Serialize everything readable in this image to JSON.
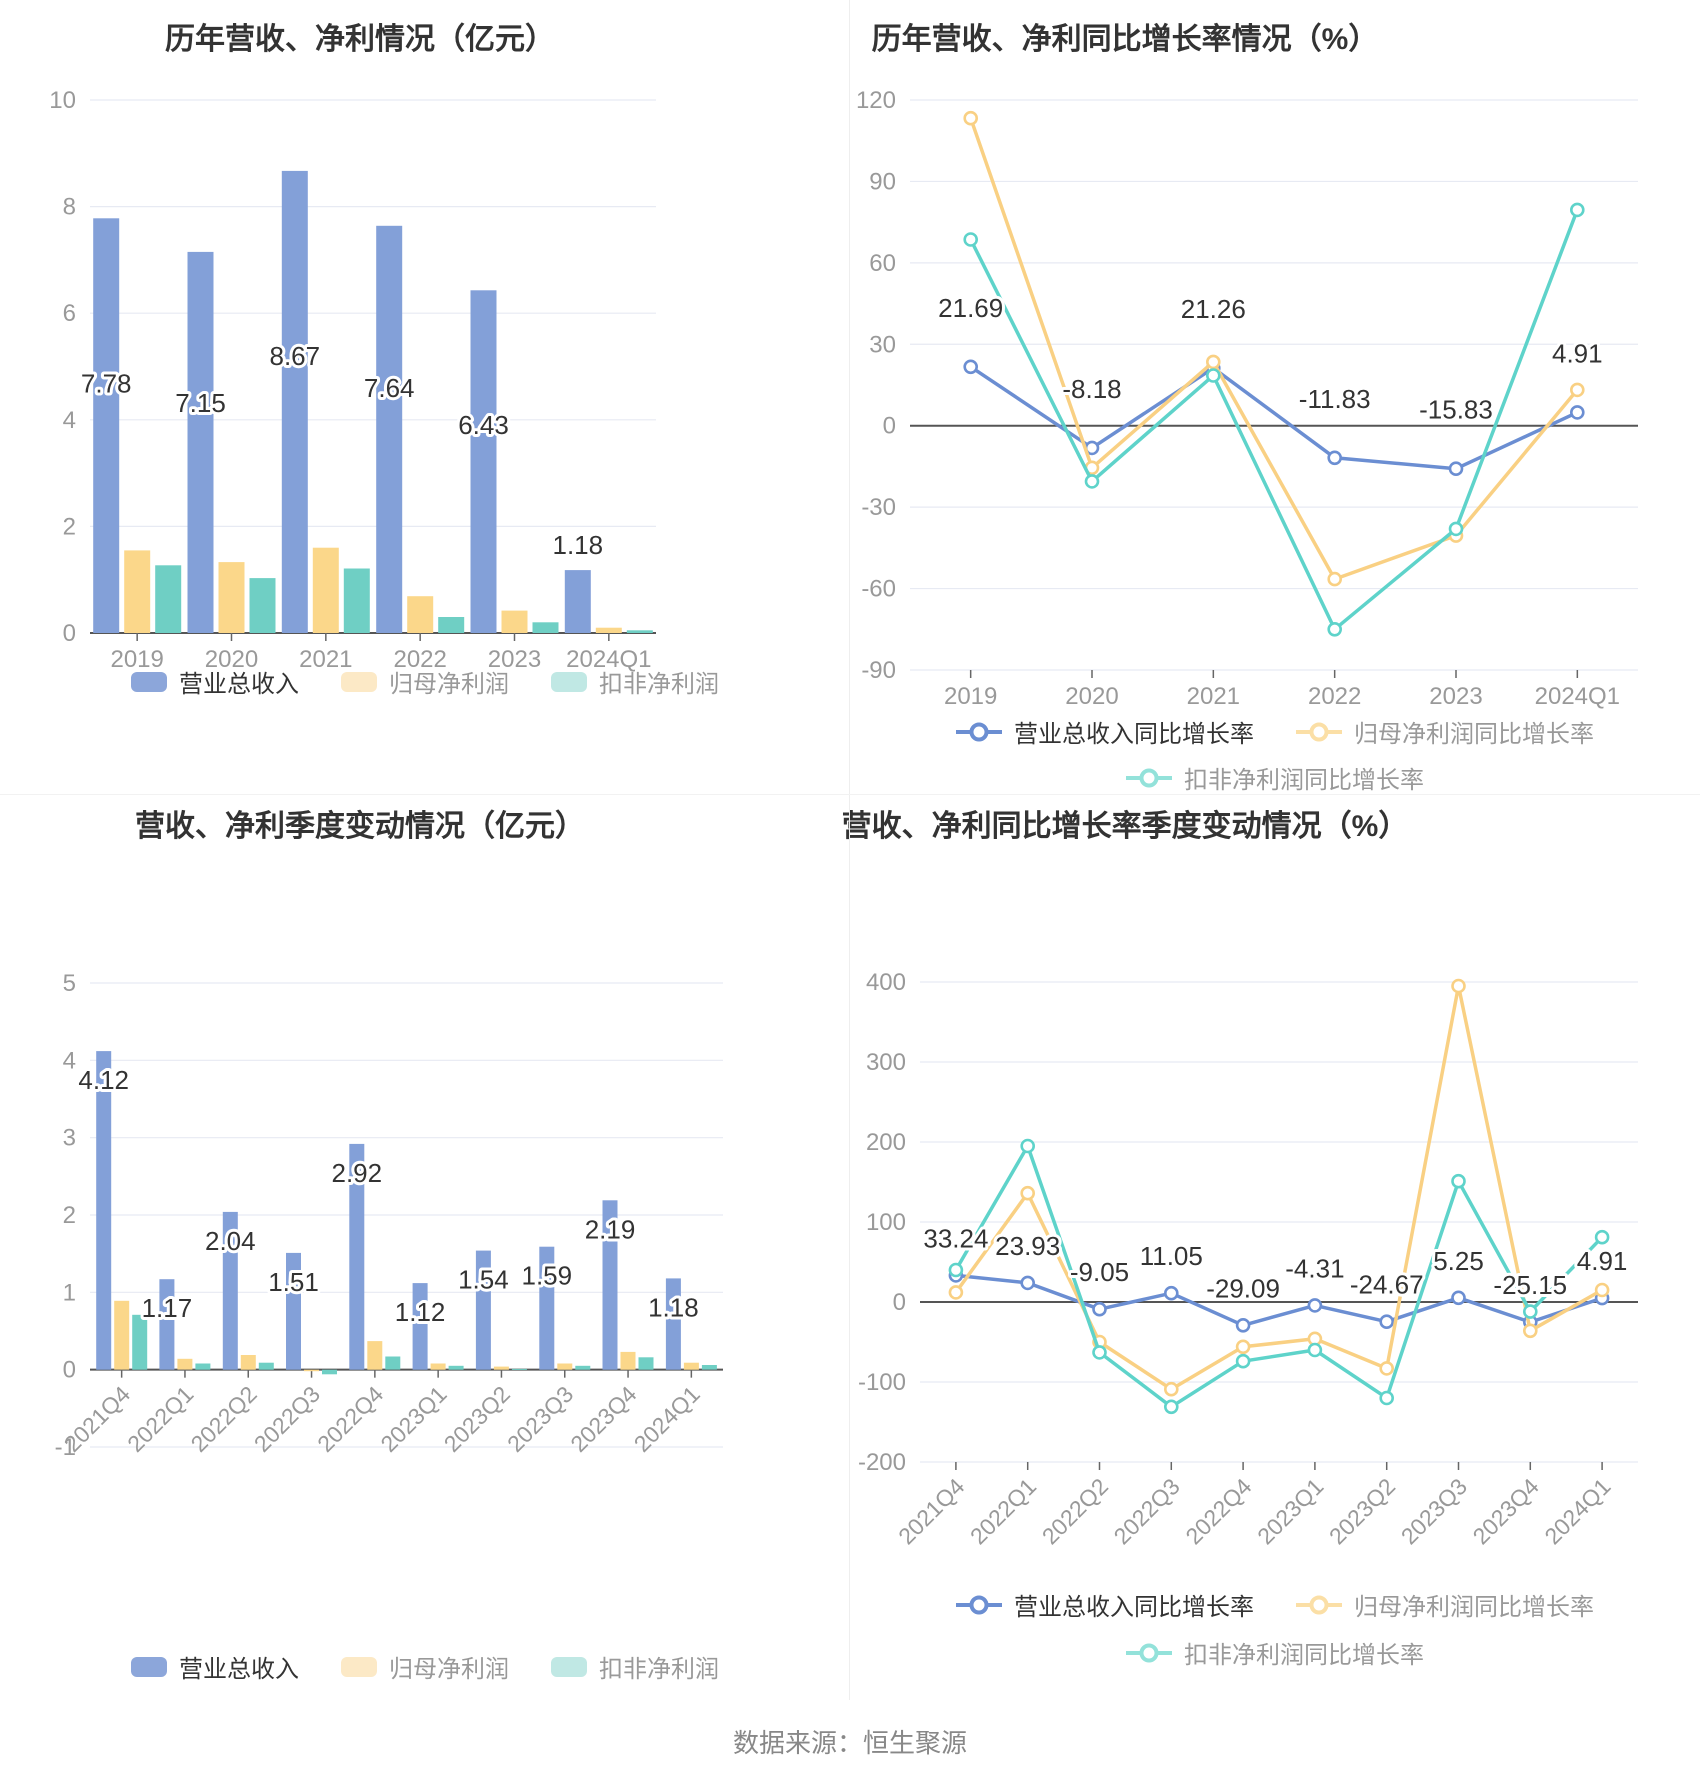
{
  "footer": {
    "source_text": "数据来源：恒生聚源"
  },
  "theme": {
    "background": "#ffffff",
    "title_color": "#333333",
    "axis_label_color": "#999999",
    "data_label_color": "#333333",
    "grid_line_color": "#e7eaf3",
    "zero_line_color": "#555555",
    "tick_color": "#666666",
    "divider_color": "#eeeeee",
    "footer_color": "#888888",
    "blue": "#83a0d8",
    "yellow": "#fbd78a",
    "teal": "#6fcfc4",
    "blue_line": "#6b8ed2",
    "yellow_line": "#f9d083",
    "teal_line": "#5ed3ca"
  },
  "chart_data": [
    {
      "type": "bar",
      "title": "历年营收、净利情况（亿元）",
      "categories": [
        "2019",
        "2020",
        "2021",
        "2022",
        "2023",
        "2024Q1"
      ],
      "y_axis": {
        "range": [
          0,
          10
        ],
        "ticks": [
          0,
          2,
          4,
          6,
          8,
          10
        ]
      },
      "grid": true,
      "legend_position": "bottom",
      "series": [
        {
          "name": "营业总收入",
          "color": "#83a0d8",
          "legend_color": "#8ca6da",
          "values": [
            7.78,
            7.15,
            8.67,
            7.64,
            6.43,
            1.18
          ],
          "labeled": true
        },
        {
          "name": "归母净利润",
          "color": "#fbd78a",
          "legend_color": "#fce9c6",
          "values": [
            1.55,
            1.33,
            1.6,
            0.69,
            0.42,
            0.1
          ],
          "labeled": false
        },
        {
          "name": "扣非净利润",
          "color": "#6fcfc4",
          "legend_color": "#c0e8e4",
          "values": [
            1.27,
            1.03,
            1.21,
            0.3,
            0.2,
            0.05
          ],
          "labeled": false
        }
      ]
    },
    {
      "type": "line",
      "title": "历年营收、净利同比增长率情况（%）",
      "categories": [
        "2019",
        "2020",
        "2021",
        "2022",
        "2023",
        "2024Q1"
      ],
      "y_axis": {
        "range": [
          -90,
          120
        ],
        "ticks": [
          -90,
          -60,
          -30,
          0,
          30,
          60,
          90,
          120
        ]
      },
      "grid": true,
      "legend_position": "bottom",
      "series": [
        {
          "name": "营业总收入同比增长率",
          "color": "#6b8ed2",
          "legend_color": "#6b8ed2",
          "values": [
            21.69,
            -8.18,
            21.26,
            -11.83,
            -15.83,
            4.91
          ],
          "labeled": true
        },
        {
          "name": "归母净利润同比增长率",
          "color": "#f9d083",
          "legend_color": "#fbdfa6",
          "values": [
            113.3,
            -15.5,
            23.5,
            -56.5,
            -40.5,
            13.2
          ],
          "labeled": false
        },
        {
          "name": "扣非净利润同比增长率",
          "color": "#5ed3ca",
          "legend_color": "#93e2da",
          "values": [
            68.6,
            -20.5,
            18.5,
            -75.0,
            -38.0,
            79.5
          ],
          "labeled": false
        }
      ]
    },
    {
      "type": "bar",
      "title": "营收、净利季度变动情况（亿元）",
      "categories": [
        "2021Q4",
        "2022Q1",
        "2022Q2",
        "2022Q3",
        "2022Q4",
        "2023Q1",
        "2023Q2",
        "2023Q3",
        "2023Q4",
        "2024Q1"
      ],
      "y_axis": {
        "range": [
          -1,
          5
        ],
        "ticks": [
          -1,
          0,
          1,
          2,
          3,
          4,
          5
        ]
      },
      "grid": true,
      "legend_position": "bottom",
      "series": [
        {
          "name": "营业总收入",
          "color": "#83a0d8",
          "legend_color": "#8ca6da",
          "values": [
            4.12,
            1.17,
            2.04,
            1.51,
            2.92,
            1.12,
            1.54,
            1.59,
            2.19,
            1.18
          ],
          "labeled": true
        },
        {
          "name": "归母净利润",
          "color": "#fbd78a",
          "legend_color": "#fce9c6",
          "values": [
            0.89,
            0.14,
            0.19,
            -0.02,
            0.37,
            0.08,
            0.04,
            0.08,
            0.23,
            0.09
          ],
          "labeled": false
        },
        {
          "name": "扣非净利润",
          "color": "#6fcfc4",
          "legend_color": "#c0e8e4",
          "values": [
            0.71,
            0.08,
            0.09,
            -0.06,
            0.17,
            0.05,
            0.01,
            0.05,
            0.16,
            0.06
          ],
          "labeled": false
        }
      ]
    },
    {
      "type": "line",
      "title": "营收、净利同比增长率季度变动情况（%）",
      "categories": [
        "2021Q4",
        "2022Q1",
        "2022Q2",
        "2022Q3",
        "2022Q4",
        "2023Q1",
        "2023Q2",
        "2023Q3",
        "2023Q4",
        "2024Q1"
      ],
      "y_axis": {
        "range": [
          -200,
          400
        ],
        "ticks": [
          -200,
          -100,
          0,
          100,
          200,
          300,
          400
        ]
      },
      "grid": true,
      "legend_position": "bottom",
      "series": [
        {
          "name": "营业总收入同比增长率",
          "color": "#6b8ed2",
          "legend_color": "#6b8ed2",
          "values": [
            33.24,
            23.93,
            -9.05,
            11.05,
            -29.09,
            -4.31,
            -24.67,
            5.25,
            -25.15,
            4.91
          ],
          "labeled": true
        },
        {
          "name": "归母净利润同比增长率",
          "color": "#f9d083",
          "legend_color": "#fbdfa6",
          "values": [
            12,
            136,
            -50,
            -109,
            -56,
            -46,
            -83,
            395,
            -36,
            15
          ],
          "labeled": false
        },
        {
          "name": "扣非净利润同比增长率",
          "color": "#5ed3ca",
          "legend_color": "#93e2da",
          "values": [
            40,
            195,
            -63,
            -131,
            -74,
            -60,
            -120,
            151,
            -12,
            81
          ],
          "labeled": false
        }
      ]
    }
  ]
}
